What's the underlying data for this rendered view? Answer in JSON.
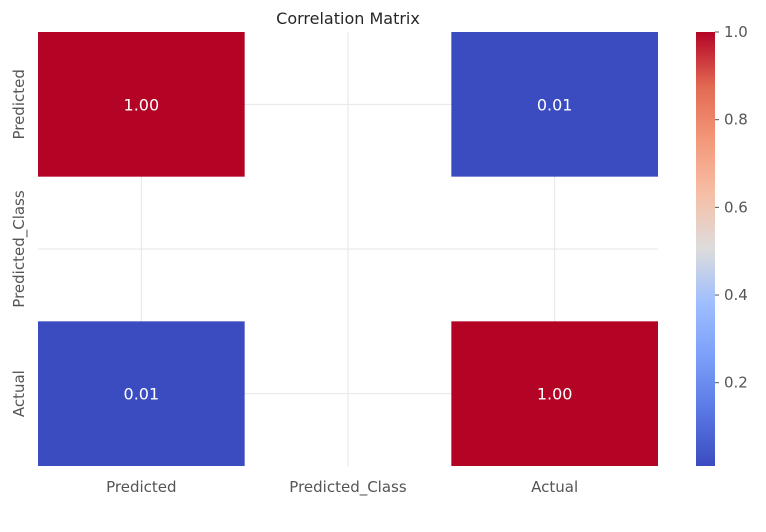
{
  "chart_data": {
    "type": "heatmap",
    "title": "Correlation Matrix",
    "x_categories": [
      "Predicted",
      "Predicted_Class",
      "Actual"
    ],
    "y_categories": [
      "Predicted",
      "Predicted_Class",
      "Actual"
    ],
    "matrix": [
      [
        1.0,
        null,
        0.01
      ],
      [
        null,
        null,
        null
      ],
      [
        0.01,
        null,
        1.0
      ]
    ],
    "annotations": [
      [
        "1.00",
        "",
        "0.01"
      ],
      [
        "",
        "",
        ""
      ],
      [
        "0.01",
        "",
        "1.00"
      ]
    ],
    "colormap": "coolwarm",
    "colorbar": {
      "range": [
        0.01,
        1.0
      ],
      "ticks": [
        0.2,
        0.4,
        0.6,
        0.8,
        1.0
      ],
      "tick_labels": [
        "0.2",
        "0.4",
        "0.6",
        "0.8",
        "1.0"
      ]
    },
    "grid": true,
    "colors": {
      "low": "#3b4cc0",
      "high": "#b40426",
      "grid": "#e6e6e6"
    }
  }
}
